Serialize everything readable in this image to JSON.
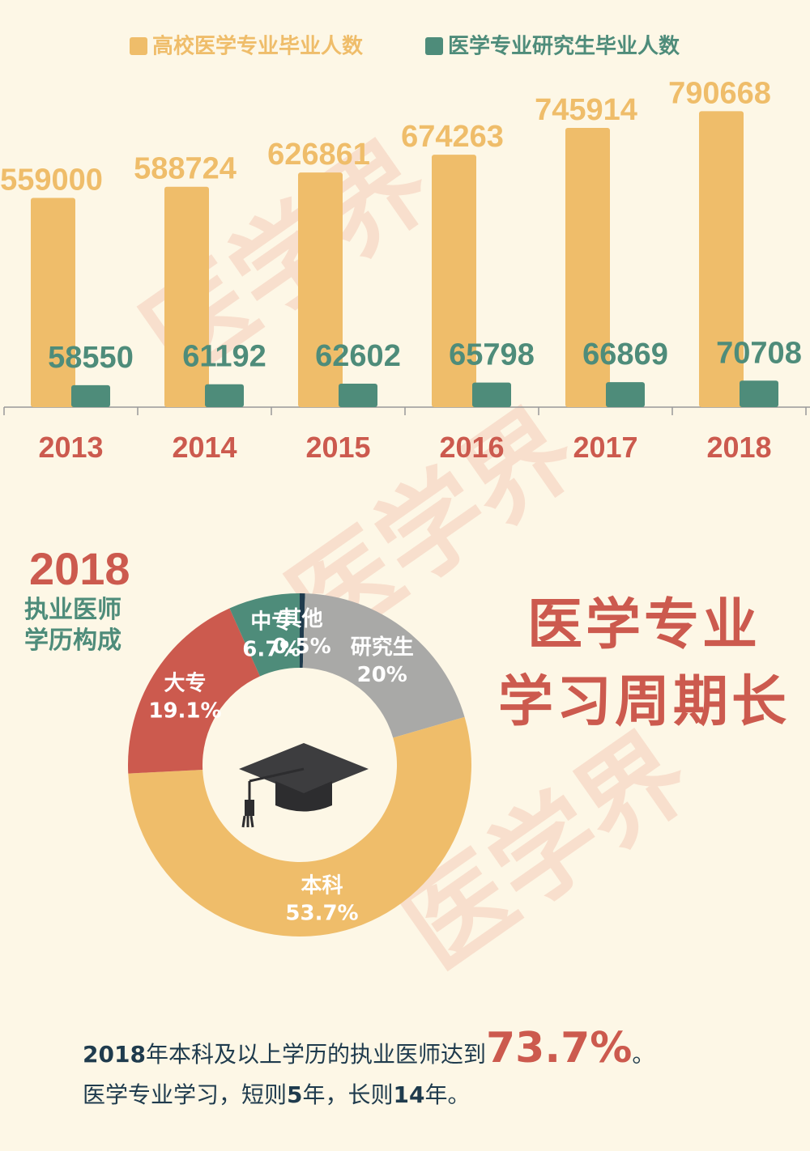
{
  "chart_data": [
    {
      "type": "bar",
      "categories": [
        "2013",
        "2014",
        "2015",
        "2016",
        "2017",
        "2018"
      ],
      "series": [
        {
          "name": "高校医学专业毕业人数",
          "color": "#efbd6a",
          "values": [
            559000,
            588724,
            626861,
            674263,
            745914,
            790668
          ]
        },
        {
          "name": "医学专业研究生毕业人数",
          "color": "#4e8c7a",
          "values": [
            58550,
            61192,
            62602,
            65798,
            66869,
            70708
          ]
        }
      ]
    },
    {
      "type": "pie",
      "title": "2018",
      "subtitle": "执业医师学历构成",
      "categories": [
        "其他",
        "研究生",
        "本科",
        "大专",
        "中专"
      ],
      "values": [
        0.5,
        20,
        53.7,
        19.1,
        6.7
      ],
      "value_labels": [
        "0.5%",
        "20%",
        "53.7%",
        "19.1%",
        "6.7%"
      ],
      "colors": [
        "#1f3b4d",
        "#a9a9a7",
        "#efbd6a",
        "#cc5a4e",
        "#4e8c7a"
      ]
    }
  ],
  "headline": [
    "医学专业",
    "学习周期长"
  ],
  "watermark": "医学界",
  "notes": [
    [
      "2018",
      "年本科及以上学历的执业医师达到",
      "73.7%",
      "。"
    ],
    [
      "医学专业学习，短则",
      "5",
      "年，长则",
      "14",
      "年。"
    ]
  ]
}
